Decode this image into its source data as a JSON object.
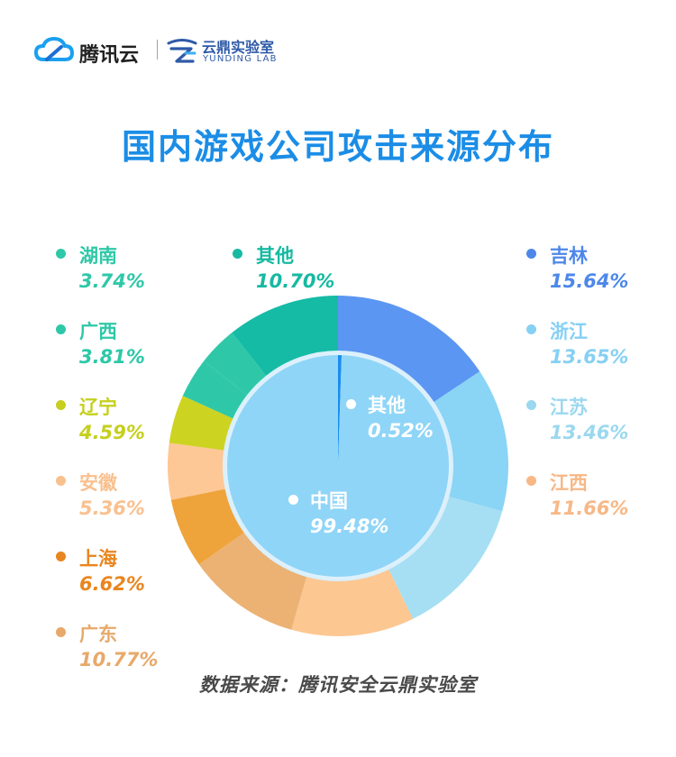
{
  "header": {
    "brand_name": "腾讯云",
    "lab_name": "云鼎实验室",
    "lab_sub": "YUNDING LAB"
  },
  "title": "国内游戏公司攻击来源分布",
  "source": "数据来源：腾讯安全云鼎实验室",
  "chart_data": [
    {
      "type": "pie",
      "ring": "outer",
      "title": "国内游戏公司攻击来源分布",
      "categories": [
        "吉林",
        "浙江",
        "江苏",
        "江西",
        "广东",
        "上海",
        "安徽",
        "辽宁",
        "广西",
        "湖南",
        "其他"
      ],
      "values": [
        15.64,
        13.65,
        13.46,
        11.66,
        10.77,
        6.62,
        5.36,
        4.59,
        3.81,
        3.74,
        10.7
      ],
      "labels": [
        "15.64%",
        "13.65%",
        "13.46%",
        "11.66%",
        "10.77%",
        "6.62%",
        "5.36%",
        "4.59%",
        "3.81%",
        "3.74%",
        "10.70%"
      ],
      "colors": [
        "#5b96f2",
        "#8ad4f6",
        "#a6dff3",
        "#fdc792",
        "#ebb273",
        "#efa33b",
        "#fdc796",
        "#cdd321",
        "#2ec8a8",
        "#2ec8a8",
        "#15bba5"
      ]
    },
    {
      "type": "pie",
      "ring": "inner",
      "categories": [
        "其他",
        "中国"
      ],
      "values": [
        0.52,
        99.48
      ],
      "labels": [
        "0.52%",
        "99.48%"
      ],
      "colors": [
        "#1a8cf0",
        "#8fd5f7"
      ]
    }
  ],
  "legend": {
    "left": [
      {
        "label": "湖南",
        "value": "3.74%",
        "color": "#2ec8a8"
      },
      {
        "label": "广西",
        "value": "3.81%",
        "color": "#2ec8a8"
      },
      {
        "label": "辽宁",
        "value": "4.59%",
        "color": "#c6cf1e"
      },
      {
        "label": "安徽",
        "value": "5.36%",
        "color": "#f9c08f"
      },
      {
        "label": "上海",
        "value": "6.62%",
        "color": "#e8861f"
      },
      {
        "label": "广东",
        "value": "10.77%",
        "color": "#e7a96a"
      }
    ],
    "middle": [
      {
        "label": "其他",
        "value": "10.70%",
        "color": "#17b9a2"
      }
    ],
    "right": [
      {
        "label": "吉林",
        "value": "15.64%",
        "color": "#4d87ea"
      },
      {
        "label": "浙江",
        "value": "13.65%",
        "color": "#86d0f4"
      },
      {
        "label": "江苏",
        "value": "13.46%",
        "color": "#9bd8ef"
      },
      {
        "label": "江西",
        "value": "11.66%",
        "color": "#f7b887"
      }
    ]
  },
  "inner_labels": [
    {
      "label": "其他",
      "value": "0.52%"
    },
    {
      "label": "中国",
      "value": "99.48%"
    }
  ]
}
